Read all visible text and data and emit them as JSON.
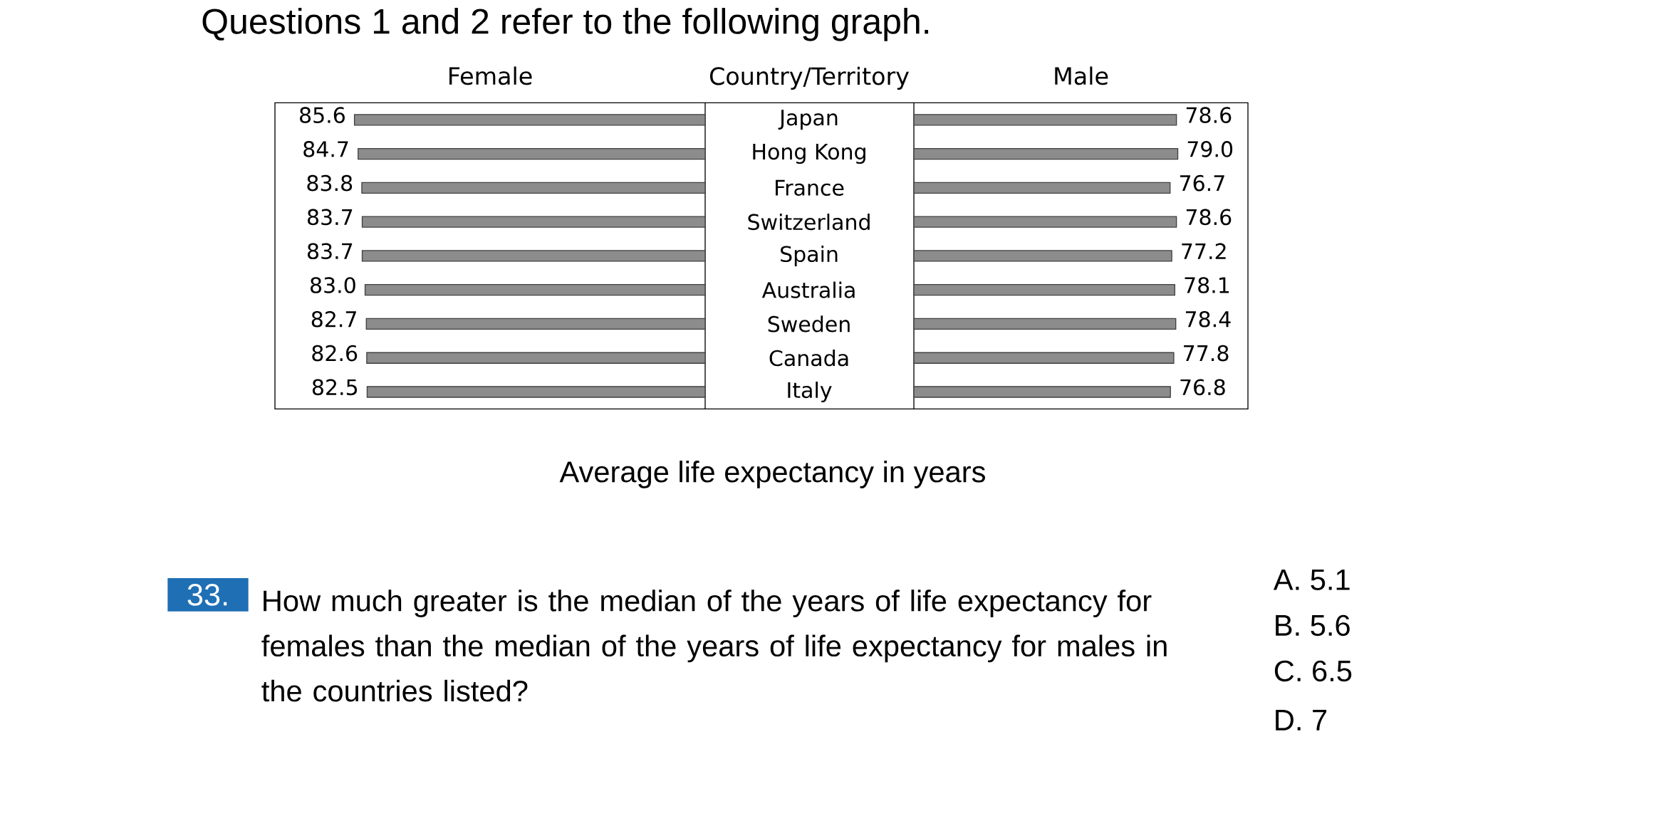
{
  "chart_data": [
    {
      "type": "bar",
      "orientation": "horizontal",
      "title": "Female",
      "ylabel": "Country/Territory",
      "categories": [
        "Japan",
        "Hong Kong",
        "France",
        "Switzerland",
        "Spain",
        "Australia",
        "Sweden",
        "Canada",
        "Italy"
      ],
      "values": [
        85.6,
        84.7,
        83.8,
        83.7,
        83.7,
        83.0,
        82.7,
        82.6,
        82.5
      ],
      "value_labels": [
        "85.6",
        "84.7",
        "83.8",
        "83.7",
        "83.7",
        "83.0",
        "82.7",
        "82.6",
        "82.5"
      ],
      "color": "#8c8c8c",
      "xlim": [
        105,
        0
      ],
      "tick_labels": "y",
      "annotations": [
        "Questions 1 and 2 refer to the following graph.",
        "Average life expectancy in years",
        "33.",
        "How much greater is the median of the years of life expectancy for females than the median of the years of life expectancy for males in the countries listed?",
        "A. 5.1",
        "B. 5.6",
        "C. 6.5",
        "D. 7"
      ]
    },
    {
      "type": "bar",
      "orientation": "horizontal",
      "title": "Male",
      "values": [
        78.6,
        79.0,
        76.7,
        78.6,
        77.2,
        78.1,
        78.4,
        77.8,
        76.8
      ],
      "value_labels": [
        "78.6",
        "79.0",
        "76.7",
        "78.6",
        "77.2",
        "78.1",
        "78.4",
        "77.8",
        "76.8"
      ],
      "color": "#8c8c8c",
      "xlim": [
        0,
        100
      ],
      "tick_labels": false
    }
  ]
}
